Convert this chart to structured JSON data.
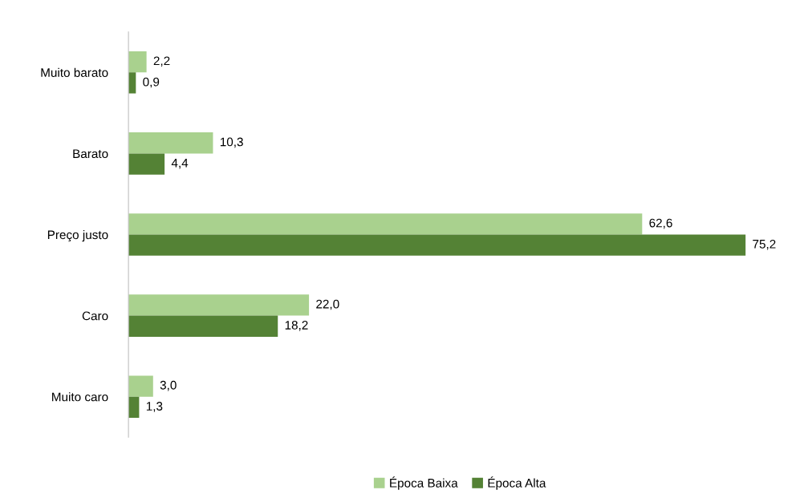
{
  "chart_data": {
    "type": "bar",
    "orientation": "horizontal",
    "categories": [
      "Muito barato",
      "Barato",
      "Preço justo",
      "Caro",
      "Muito caro"
    ],
    "series": [
      {
        "name": "Época Baixa",
        "color": "#a9d18e",
        "values": [
          2.2,
          10.3,
          62.6,
          22.0,
          3.0
        ],
        "value_labels": [
          "2,2",
          "10,3",
          "62,6",
          "22,0",
          "3,0"
        ]
      },
      {
        "name": "Época Alta",
        "color": "#548235",
        "values": [
          0.9,
          4.4,
          75.2,
          18.2,
          1.3
        ],
        "value_labels": [
          "0,9",
          "4,4",
          "75,2",
          "18,2",
          "1,3"
        ]
      }
    ],
    "legend": "bottom"
  }
}
